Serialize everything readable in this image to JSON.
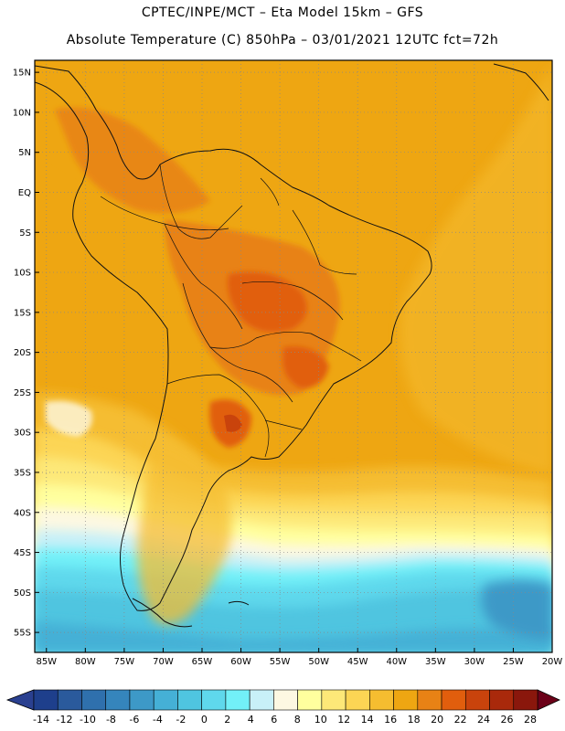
{
  "header": {
    "line1": "CPTEC/INPE/MCT –  Eta Model 15km – GFS",
    "line2": "Absolute Temperature (C) 850hPa – 03/01/2021 12UTC fct=72h"
  },
  "map": {
    "lat_labels": [
      "15N",
      "10N",
      "5N",
      "EQ",
      "5S",
      "10S",
      "15S",
      "20S",
      "25S",
      "30S",
      "35S",
      "40S",
      "45S",
      "50S",
      "55S"
    ],
    "lon_labels": [
      "85W",
      "80W",
      "75W",
      "70W",
      "65W",
      "60W",
      "55W",
      "50W",
      "45W",
      "40W",
      "35W",
      "30W",
      "25W",
      "20W"
    ],
    "lat_range": [
      -57.5,
      16.5
    ],
    "lon_range": [
      -86.5,
      -20
    ]
  },
  "colorbar": {
    "ticks": [
      "-14",
      "-12",
      "-10",
      "-8",
      "-6",
      "-4",
      "-2",
      "0",
      "2",
      "4",
      "6",
      "8",
      "10",
      "12",
      "14",
      "16",
      "18",
      "20",
      "22",
      "24",
      "26",
      "28"
    ],
    "colors": [
      "#1e3f8c",
      "#2a5a9c",
      "#2f70ad",
      "#3585bc",
      "#3d99c7",
      "#45b0d6",
      "#4fc5e0",
      "#5fd8ec",
      "#72f0f8",
      "#c8f0f8",
      "#fdf8e2",
      "#ffff9e",
      "#fde878",
      "#fcd554",
      "#f5bd30",
      "#eea612",
      "#e88215",
      "#e15e0d",
      "#c9430c",
      "#a9290b",
      "#8a170c"
    ],
    "under_color": "#2a4090",
    "over_color": "#6b0018"
  }
}
